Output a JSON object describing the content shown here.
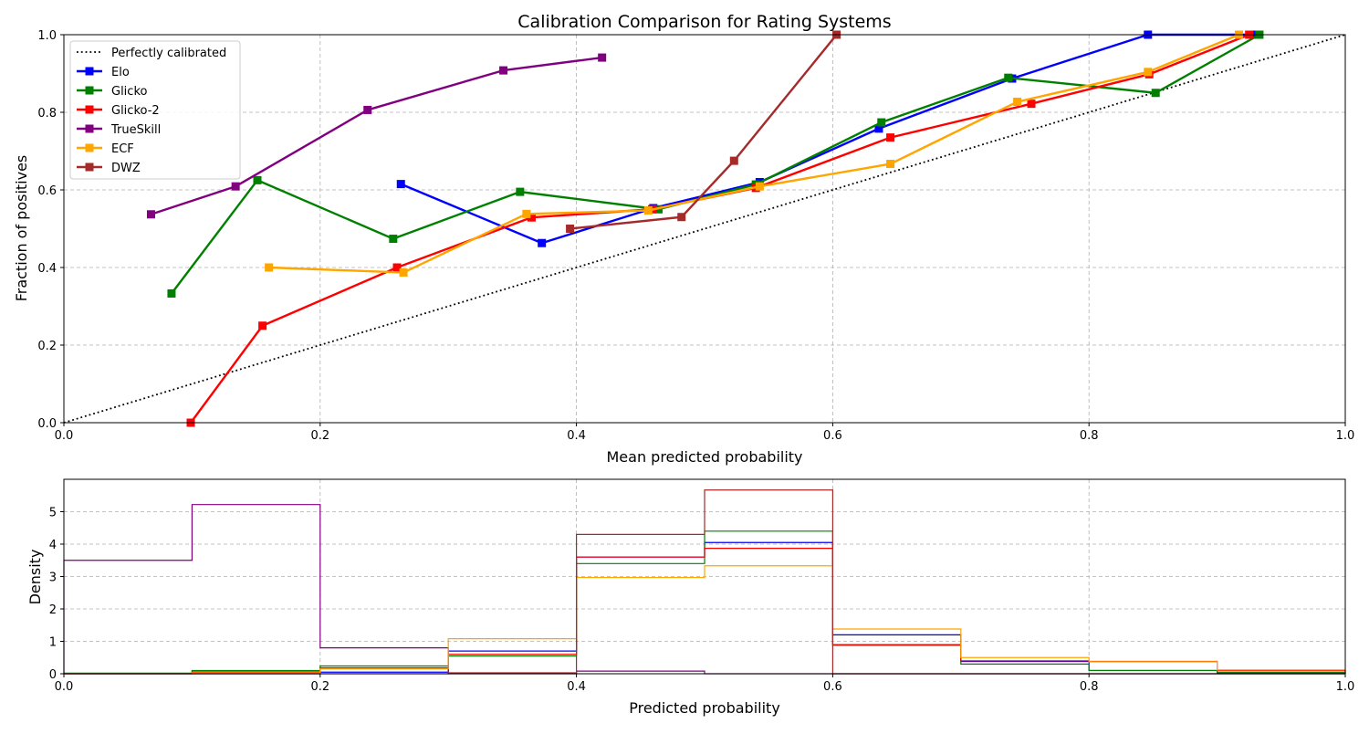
{
  "colors": {
    "Perfectly calibrated": "#000000",
    "Elo": "#0000ff",
    "Glicko": "#008000",
    "Glicko-2": "#ff0000",
    "TrueSkill": "#800080",
    "ECF": "#ffa500",
    "DWZ": "#a52a2a",
    "grid": "#b0b0b0"
  },
  "chart_data": [
    {
      "type": "line",
      "title": "Calibration Comparison for Rating Systems",
      "xlabel": "Mean predicted probability",
      "ylabel": "Fraction of positives",
      "xlim": [
        0,
        1
      ],
      "ylim": [
        0,
        1
      ],
      "xticks": [
        "0.0",
        "0.2",
        "0.4",
        "0.6",
        "0.8",
        "1.0"
      ],
      "yticks": [
        "0.0",
        "0.2",
        "0.4",
        "0.6",
        "0.8",
        "1.0"
      ],
      "grid": true,
      "legend_position": "top-left",
      "reference_line": {
        "name": "Perfectly calibrated",
        "x": [
          0,
          1
        ],
        "y": [
          0,
          1
        ],
        "style": "dotted"
      },
      "series": [
        {
          "name": "Elo",
          "x": [
            0.263,
            0.373,
            0.46,
            0.543,
            0.636,
            0.74,
            0.846,
            0.93
          ],
          "y": [
            0.615,
            0.463,
            0.553,
            0.62,
            0.758,
            0.887,
            1.0,
            1.0
          ]
        },
        {
          "name": "Glicko",
          "x": [
            0.084,
            0.151,
            0.257,
            0.356,
            0.464,
            0.54,
            0.638,
            0.737,
            0.852,
            0.933
          ],
          "y": [
            0.333,
            0.625,
            0.474,
            0.595,
            0.55,
            0.614,
            0.774,
            0.889,
            0.85,
            1.0
          ]
        },
        {
          "name": "Glicko-2",
          "x": [
            0.099,
            0.155,
            0.26,
            0.365,
            0.459,
            0.54,
            0.645,
            0.755,
            0.847,
            0.925
          ],
          "y": [
            0.0,
            0.25,
            0.4,
            0.529,
            0.55,
            0.605,
            0.735,
            0.822,
            0.898,
            1.0
          ]
        },
        {
          "name": "TrueSkill",
          "x": [
            0.068,
            0.134,
            0.237,
            0.343,
            0.42
          ],
          "y": [
            0.537,
            0.609,
            0.806,
            0.908,
            0.941
          ]
        },
        {
          "name": "ECF",
          "x": [
            0.16,
            0.265,
            0.361,
            0.456,
            0.543,
            0.645,
            0.744,
            0.846,
            0.917
          ],
          "y": [
            0.4,
            0.387,
            0.538,
            0.547,
            0.609,
            0.667,
            0.827,
            0.904,
            1.0
          ]
        },
        {
          "name": "DWZ",
          "x": [
            0.395,
            0.482,
            0.523,
            0.603
          ],
          "y": [
            0.5,
            0.53,
            0.675,
            1.0
          ]
        }
      ]
    },
    {
      "type": "histogram",
      "xlabel": "Predicted probability",
      "ylabel": "Density",
      "xlim": [
        0,
        1
      ],
      "ylim": [
        0,
        6
      ],
      "xticks": [
        "0.0",
        "0.2",
        "0.4",
        "0.6",
        "0.8",
        "1.0"
      ],
      "yticks": [
        "0",
        "1",
        "2",
        "3",
        "4",
        "5"
      ],
      "grid": true,
      "bin_edges": [
        0,
        0.1,
        0.2,
        0.3,
        0.4,
        0.5,
        0.6,
        0.7,
        0.8,
        0.9,
        1.0
      ],
      "series": [
        {
          "name": "Elo",
          "values": [
            0.0,
            0.0,
            0.05,
            0.7,
            3.6,
            4.05,
            1.2,
            0.38,
            0.1,
            0.02
          ]
        },
        {
          "name": "Glicko",
          "values": [
            0.02,
            0.1,
            0.24,
            0.55,
            3.4,
            4.4,
            0.9,
            0.3,
            0.1,
            0.05
          ]
        },
        {
          "name": "Glicko-2",
          "values": [
            0.0,
            0.06,
            0.18,
            0.6,
            3.6,
            3.87,
            0.88,
            0.4,
            0.38,
            0.1
          ]
        },
        {
          "name": "TrueSkill",
          "values": [
            3.5,
            5.22,
            0.8,
            0.0,
            0.08,
            0.0,
            0.0,
            0.0,
            0.0,
            0.0
          ]
        },
        {
          "name": "ECF",
          "values": [
            0.0,
            0.03,
            0.15,
            1.08,
            2.97,
            3.33,
            1.38,
            0.5,
            0.37,
            0.12
          ]
        },
        {
          "name": "DWZ",
          "values": [
            0.0,
            0.0,
            0.0,
            0.03,
            4.3,
            5.67,
            0.0,
            0.0,
            0.0,
            0.0
          ]
        }
      ]
    }
  ]
}
